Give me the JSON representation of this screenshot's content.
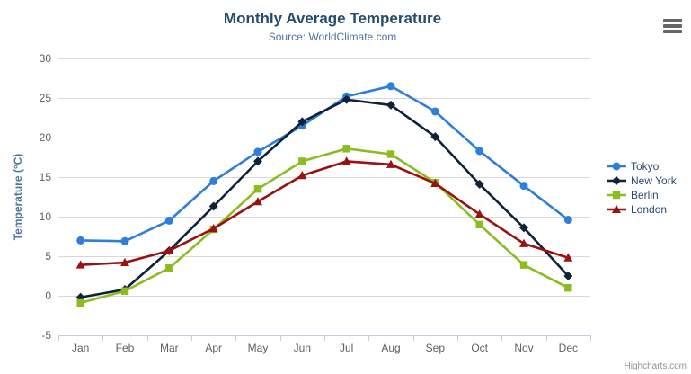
{
  "chart": {
    "credits": "Highcharts.com",
    "menu_icon": "hamburger-icon"
  },
  "chart_data": {
    "type": "line",
    "title": "Monthly Average Temperature",
    "subtitle": "Source: WorldClimate.com",
    "categories": [
      "Jan",
      "Feb",
      "Mar",
      "Apr",
      "May",
      "Jun",
      "Jul",
      "Aug",
      "Sep",
      "Oct",
      "Nov",
      "Dec"
    ],
    "series": [
      {
        "name": "Tokyo",
        "color": "#2f7ed8",
        "marker": "circle",
        "values": [
          7.0,
          6.9,
          9.5,
          14.5,
          18.2,
          21.5,
          25.2,
          26.5,
          23.3,
          18.3,
          13.9,
          9.6
        ]
      },
      {
        "name": "New York",
        "color": "#0d233a",
        "marker": "diamond",
        "values": [
          -0.2,
          0.8,
          5.7,
          11.3,
          17.0,
          22.0,
          24.8,
          24.1,
          20.1,
          14.1,
          8.6,
          2.5
        ]
      },
      {
        "name": "Berlin",
        "color": "#8bbc21",
        "marker": "square",
        "values": [
          -0.9,
          0.6,
          3.5,
          8.4,
          13.5,
          17.0,
          18.6,
          17.9,
          14.3,
          9.0,
          3.9,
          1.0
        ]
      },
      {
        "name": "London",
        "color": "#9b1010",
        "marker": "triangle",
        "values": [
          3.9,
          4.2,
          5.7,
          8.5,
          11.9,
          15.2,
          17.0,
          16.6,
          14.2,
          10.3,
          6.6,
          4.8
        ]
      }
    ],
    "xlabel": "",
    "ylabel": "Temperature (°C)",
    "ylim": [
      -5,
      30
    ],
    "ytick_step": 5,
    "grid": true,
    "legend_position": "right",
    "colors": {
      "title": "#274b6d",
      "subtitle": "#4d759e",
      "axis_labels": "#606060",
      "axis_line": "#c0d0e0",
      "gridline": "#d8d8d8",
      "ylabel_text": "#4d759e",
      "legend_text": "#274b6d",
      "credits_text": "#909090",
      "menu_icon": "#666666",
      "background": "#ffffff"
    }
  }
}
